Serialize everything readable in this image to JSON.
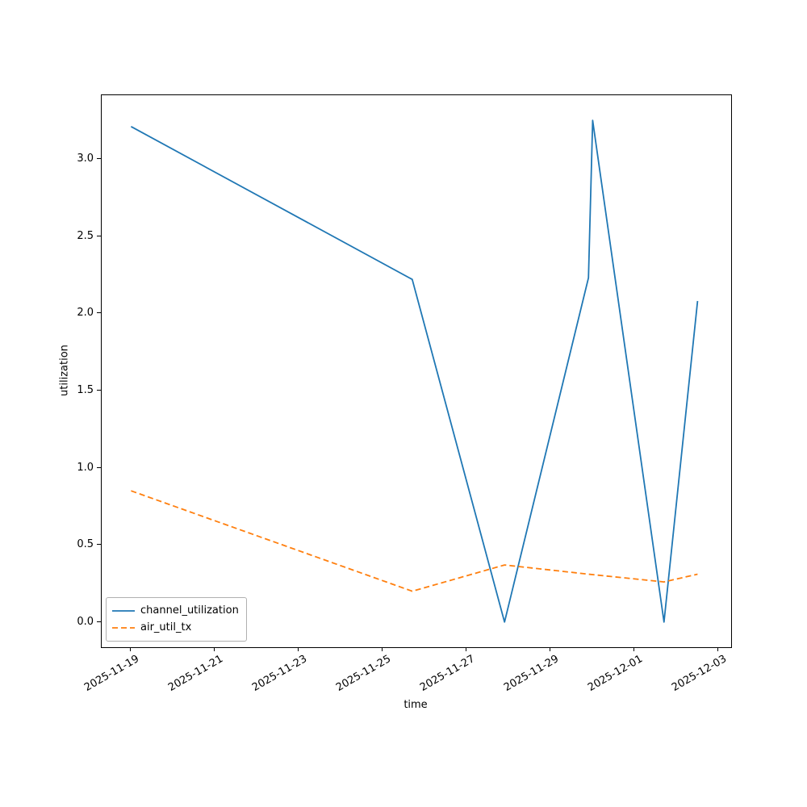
{
  "chart_data": {
    "type": "line",
    "title": "",
    "xlabel": "time",
    "ylabel": "utilization",
    "x_unit": "days since 2025-11-19",
    "x_tick_labels": [
      "2025-11-19",
      "2025-11-21",
      "2025-11-23",
      "2025-11-25",
      "2025-11-27",
      "2025-11-29",
      "2025-12-01",
      "2025-12-03"
    ],
    "x_tick_positions": [
      0,
      2,
      4,
      6,
      8,
      10,
      12,
      14
    ],
    "y_tick_labels": [
      "0.0",
      "0.5",
      "1.0",
      "1.5",
      "2.0",
      "2.5",
      "3.0"
    ],
    "y_tick_positions": [
      0,
      0.5,
      1,
      1.5,
      2,
      2.5,
      3
    ],
    "xlim": [
      -0.7,
      14.3
    ],
    "ylim": [
      -0.163,
      3.413
    ],
    "grid": false,
    "legend_position": "lower left",
    "series": [
      {
        "name": "channel_utilization",
        "color": "#1f77b4",
        "line_style": "solid",
        "x": [
          0,
          6.7,
          8.9,
          10.9,
          11.0,
          12.7,
          13.5
        ],
        "y": [
          3.21,
          2.22,
          0.0,
          2.23,
          3.25,
          0.0,
          2.08
        ]
      },
      {
        "name": "air_util_tx",
        "color": "#ff7f0e",
        "line_style": "dashed",
        "x": [
          0,
          6.7,
          8.9,
          10.9,
          12.7,
          13.5
        ],
        "y": [
          0.85,
          0.2,
          0.37,
          0.31,
          0.26,
          0.31
        ]
      }
    ]
  }
}
